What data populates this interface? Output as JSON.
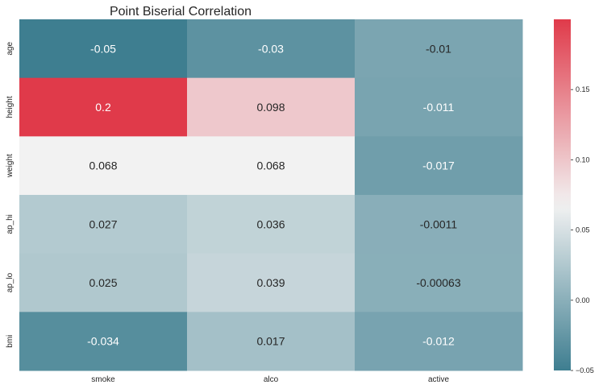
{
  "chart_data": {
    "type": "heatmap",
    "title": "Point Biserial Correlation",
    "xlabel": "",
    "ylabel": "",
    "x_categories": [
      "smoke",
      "alco",
      "active"
    ],
    "y_categories": [
      "age",
      "height",
      "weight",
      "ap_hi",
      "ap_lo",
      "bmi"
    ],
    "values": [
      [
        -0.05,
        -0.03,
        -0.01
      ],
      [
        0.2,
        0.098,
        -0.011
      ],
      [
        0.068,
        0.068,
        -0.017
      ],
      [
        0.027,
        0.036,
        -0.0011
      ],
      [
        0.025,
        0.039,
        -0.00063
      ],
      [
        -0.034,
        0.017,
        -0.012
      ]
    ],
    "cell_labels": [
      [
        "-0.05",
        "-0.03",
        "-0.01"
      ],
      [
        "0.2",
        "0.098",
        "-0.011"
      ],
      [
        "0.068",
        "0.068",
        "-0.017"
      ],
      [
        "0.027",
        "0.036",
        "-0.0011"
      ],
      [
        "0.025",
        "0.039",
        "-0.00063"
      ],
      [
        "-0.034",
        "0.017",
        "-0.012"
      ]
    ],
    "colorbar": {
      "vmin": -0.05,
      "vmax": 0.2,
      "center": 0.068,
      "ticks": [
        -0.05,
        0.0,
        0.05,
        0.1,
        0.15
      ],
      "tick_labels": [
        "−0.05",
        "0.00",
        "0.05",
        "0.10",
        "0.15"
      ]
    },
    "colors": {
      "low": "#3e7e90",
      "mid": "#f2f2f2",
      "high": "#e03a4a"
    },
    "grid": false,
    "legend": "colorbar-right"
  }
}
